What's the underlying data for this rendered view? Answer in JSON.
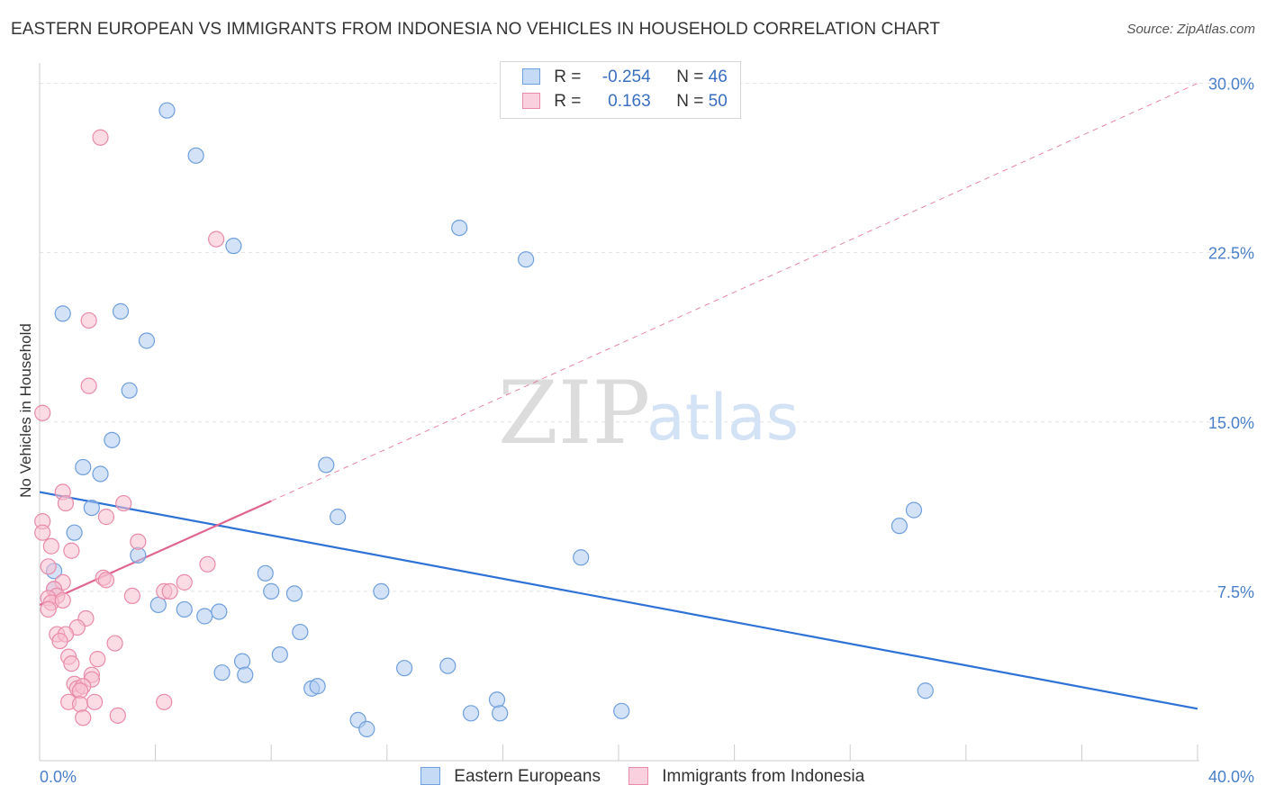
{
  "header": {
    "title": "EASTERN EUROPEAN VS IMMIGRANTS FROM INDONESIA NO VEHICLES IN HOUSEHOLD CORRELATION CHART",
    "source": "Source: ZipAtlas.com"
  },
  "watermark": {
    "zip": "ZIP",
    "atlas": "atlas"
  },
  "colors": {
    "blue_fill": "#aecbf0",
    "blue_stroke": "#6f9fdc",
    "blue_line": "#2f72d6",
    "pink_fill": "#f7bfd0",
    "pink_stroke": "#e98aa9",
    "pink_line": "#e0668f",
    "grid": "#e3e3e3",
    "axis": "#cccccc",
    "tick_text": "#4a7fc9"
  },
  "legend": {
    "rows": [
      {
        "r_label": "R =",
        "r_value": "-0.254",
        "n_label": "N =",
        "n_value": "46"
      },
      {
        "r_label": "R =",
        "r_value": "0.163",
        "n_label": "N =",
        "n_value": "50"
      }
    ]
  },
  "bottom_legend": {
    "series1": "Eastern Europeans",
    "series2": "Immigrants from Indonesia"
  },
  "chart_data": {
    "type": "scatter",
    "title": "EASTERN EUROPEAN VS IMMIGRANTS FROM INDONESIA NO VEHICLES IN HOUSEHOLD CORRELATION CHART",
    "xlabel": "",
    "ylabel": "No Vehicles in Household",
    "xlim": [
      0,
      40
    ],
    "ylim": [
      0,
      30.9
    ],
    "x_tick_labels": [
      "0.0%",
      "40.0%"
    ],
    "y_ticks": [
      7.5,
      15.0,
      22.5,
      30.0
    ],
    "y_tick_labels": [
      "7.5%",
      "15.0%",
      "22.5%",
      "30.0%"
    ],
    "grid": true,
    "series": [
      {
        "name": "Eastern Europeans",
        "color": "#6f9fdc",
        "trend": {
          "x": [
            0,
            40
          ],
          "y": [
            11.9,
            2.3
          ],
          "style": "solid"
        },
        "points": [
          {
            "x": 4.4,
            "y": 28.8
          },
          {
            "x": 5.4,
            "y": 26.8
          },
          {
            "x": 6.7,
            "y": 22.8
          },
          {
            "x": 14.5,
            "y": 23.6
          },
          {
            "x": 16.8,
            "y": 22.2
          },
          {
            "x": 0.8,
            "y": 19.8
          },
          {
            "x": 2.8,
            "y": 19.9
          },
          {
            "x": 3.7,
            "y": 18.6
          },
          {
            "x": 3.1,
            "y": 16.4
          },
          {
            "x": 2.5,
            "y": 14.2
          },
          {
            "x": 1.5,
            "y": 13.0
          },
          {
            "x": 2.1,
            "y": 12.7
          },
          {
            "x": 9.9,
            "y": 13.1
          },
          {
            "x": 1.8,
            "y": 11.2
          },
          {
            "x": 10.3,
            "y": 10.8
          },
          {
            "x": 1.2,
            "y": 10.1
          },
          {
            "x": 3.4,
            "y": 9.1
          },
          {
            "x": 0.5,
            "y": 8.4
          },
          {
            "x": 0.5,
            "y": 7.6
          },
          {
            "x": 7.8,
            "y": 8.3
          },
          {
            "x": 8.0,
            "y": 7.5
          },
          {
            "x": 8.8,
            "y": 7.4
          },
          {
            "x": 11.8,
            "y": 7.5
          },
          {
            "x": 4.1,
            "y": 6.9
          },
          {
            "x": 5.0,
            "y": 6.7
          },
          {
            "x": 5.7,
            "y": 6.4
          },
          {
            "x": 6.2,
            "y": 6.6
          },
          {
            "x": 9.0,
            "y": 5.7
          },
          {
            "x": 8.3,
            "y": 4.7
          },
          {
            "x": 7.0,
            "y": 4.4
          },
          {
            "x": 6.3,
            "y": 3.9
          },
          {
            "x": 7.1,
            "y": 3.8
          },
          {
            "x": 9.4,
            "y": 3.2
          },
          {
            "x": 9.6,
            "y": 3.3
          },
          {
            "x": 12.6,
            "y": 4.1
          },
          {
            "x": 14.1,
            "y": 4.2
          },
          {
            "x": 15.8,
            "y": 2.7
          },
          {
            "x": 14.9,
            "y": 2.1
          },
          {
            "x": 15.9,
            "y": 2.1
          },
          {
            "x": 11.0,
            "y": 1.8
          },
          {
            "x": 11.3,
            "y": 1.4
          },
          {
            "x": 20.1,
            "y": 2.2
          },
          {
            "x": 18.7,
            "y": 9.0
          },
          {
            "x": 29.7,
            "y": 10.4
          },
          {
            "x": 30.2,
            "y": 11.1
          },
          {
            "x": 30.6,
            "y": 3.1
          }
        ]
      },
      {
        "name": "Immigrants from Indonesia",
        "color": "#e98aa9",
        "trend": {
          "x": [
            0,
            8
          ],
          "y": [
            6.9,
            11.5
          ],
          "style": "solid"
        },
        "trend_extended": {
          "x": [
            8,
            40
          ],
          "y": [
            11.5,
            30.0
          ],
          "style": "dashed"
        },
        "points": [
          {
            "x": 2.1,
            "y": 27.6
          },
          {
            "x": 6.1,
            "y": 23.1
          },
          {
            "x": 1.7,
            "y": 19.5
          },
          {
            "x": 1.7,
            "y": 16.6
          },
          {
            "x": 0.1,
            "y": 15.4
          },
          {
            "x": 0.8,
            "y": 11.9
          },
          {
            "x": 0.9,
            "y": 11.4
          },
          {
            "x": 2.9,
            "y": 11.4
          },
          {
            "x": 2.3,
            "y": 10.8
          },
          {
            "x": 0.1,
            "y": 10.6
          },
          {
            "x": 0.1,
            "y": 10.1
          },
          {
            "x": 0.4,
            "y": 9.5
          },
          {
            "x": 1.1,
            "y": 9.3
          },
          {
            "x": 3.4,
            "y": 9.7
          },
          {
            "x": 0.3,
            "y": 8.6
          },
          {
            "x": 2.2,
            "y": 8.1
          },
          {
            "x": 2.3,
            "y": 8.0
          },
          {
            "x": 0.8,
            "y": 7.9
          },
          {
            "x": 5.8,
            "y": 8.7
          },
          {
            "x": 5.0,
            "y": 7.9
          },
          {
            "x": 0.5,
            "y": 7.6
          },
          {
            "x": 0.6,
            "y": 7.3
          },
          {
            "x": 0.3,
            "y": 7.2
          },
          {
            "x": 3.2,
            "y": 7.3
          },
          {
            "x": 4.3,
            "y": 7.5
          },
          {
            "x": 4.5,
            "y": 7.5
          },
          {
            "x": 0.4,
            "y": 7.0
          },
          {
            "x": 0.3,
            "y": 6.7
          },
          {
            "x": 1.6,
            "y": 6.3
          },
          {
            "x": 1.3,
            "y": 5.9
          },
          {
            "x": 0.6,
            "y": 5.6
          },
          {
            "x": 0.9,
            "y": 5.6
          },
          {
            "x": 0.7,
            "y": 5.3
          },
          {
            "x": 2.6,
            "y": 5.2
          },
          {
            "x": 1.0,
            "y": 4.6
          },
          {
            "x": 1.1,
            "y": 4.3
          },
          {
            "x": 2.0,
            "y": 4.5
          },
          {
            "x": 1.8,
            "y": 3.8
          },
          {
            "x": 1.8,
            "y": 3.6
          },
          {
            "x": 1.2,
            "y": 3.4
          },
          {
            "x": 1.3,
            "y": 3.2
          },
          {
            "x": 1.5,
            "y": 3.3
          },
          {
            "x": 1.4,
            "y": 3.1
          },
          {
            "x": 1.0,
            "y": 2.6
          },
          {
            "x": 1.4,
            "y": 2.5
          },
          {
            "x": 1.9,
            "y": 2.6
          },
          {
            "x": 4.3,
            "y": 2.6
          },
          {
            "x": 1.5,
            "y": 1.9
          },
          {
            "x": 2.7,
            "y": 2.0
          },
          {
            "x": 0.8,
            "y": 7.1
          }
        ]
      }
    ]
  }
}
